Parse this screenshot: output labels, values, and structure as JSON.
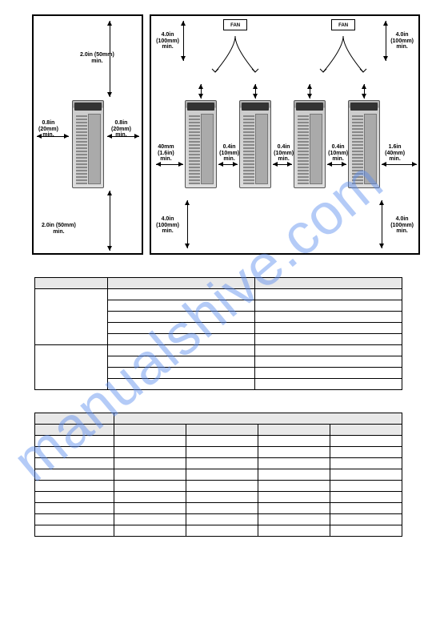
{
  "watermark": "manualshive.com",
  "diagram_left": {
    "top_clearance": "2.0in (50mm)\nmin.",
    "bottom_clearance": "2.0in (50mm)\nmin.",
    "left_clearance": "0.8in\n(20mm)\nmin.",
    "right_clearance": "0.8in\n(20mm)\nmin."
  },
  "diagram_right": {
    "fan_label": "FAN",
    "top_left": "4.0in\n(100mm)\nmin.",
    "top_right": "4.0in\n(100mm)\nmin.",
    "bottom_left": "4.0in\n(100mm)\nmin.",
    "bottom_right": "4.0in\n(100mm)\nmin.",
    "gap_left": "40mm\n(1.6in)\nmin.",
    "gap_mid": "0.4in\n(10mm)\nmin.",
    "gap_right": "1.6in\n(40mm)\nmin."
  },
  "table1": {
    "rows": 10,
    "cols": 3
  },
  "table2": {
    "header_rows": 2,
    "body_rows": 9,
    "cols": 5
  },
  "colors": {
    "border": "#000000",
    "header_bg": "#e8e8e8",
    "watermark": "#5b8def"
  }
}
